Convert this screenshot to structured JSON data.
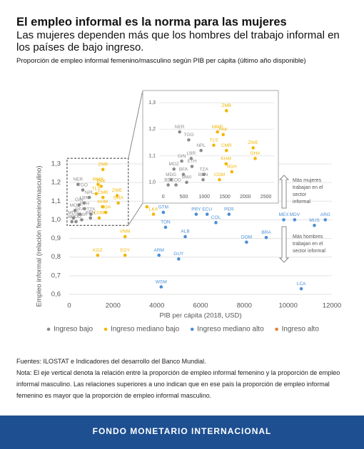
{
  "chart_data": {
    "type": "scatter",
    "title": "El empleo informal es la norma para las mujeres",
    "subtitle": "Las mujeres dependen más que los hombres del trabajo informal en los países de bajo ingreso.",
    "description": "Proporción de empleo informal femenino/masculino según PIB per cápita (último año disponible)",
    "xlabel": "PIB per cápita (2018, USD)",
    "ylabel": "Empleo informal (relación femenino/masculino)",
    "xlim": [
      0,
      12000
    ],
    "xticks": [
      0,
      2000,
      4000,
      6000,
      8000,
      10000,
      12000
    ],
    "ylim": [
      0.6,
      1.3
    ],
    "yticks": [
      {
        "value": 0.6,
        "label": "0,6"
      },
      {
        "value": 0.7,
        "label": "0,7"
      },
      {
        "value": 0.8,
        "label": "0,8"
      },
      {
        "value": 0.9,
        "label": "0,9"
      },
      {
        "value": 1.0,
        "label": "1,0"
      },
      {
        "value": 1.1,
        "label": "1,1"
      },
      {
        "value": 1.2,
        "label": "1,2"
      },
      {
        "value": 1.3,
        "label": "1,3"
      }
    ],
    "grid": true,
    "series": [
      {
        "name": "Ingreso bajo",
        "color": "#8c8c8c",
        "labels": [
          "NER",
          "TGO",
          "NPL",
          "LBR",
          "GIN",
          "ETH",
          "MOZ",
          "BFA",
          "TZA",
          "BEN",
          "MDG",
          "BDI",
          "COD",
          "MWI"
        ],
        "x": [
          400,
          620,
          920,
          680,
          450,
          700,
          260,
          490,
          990,
          970,
          190,
          120,
          310,
          570
        ],
        "y": [
          1.19,
          1.16,
          1.12,
          1.09,
          1.08,
          1.06,
          1.05,
          1.03,
          1.03,
          1.01,
          1.01,
          0.99,
          0.99,
          1.0
        ]
      },
      {
        "name": "Ingreso mediano bajo",
        "color": "#f2b705",
        "labels": [
          "ZMB",
          "MMR",
          "PAK",
          "TLS",
          "ZWE",
          "GHA",
          "CMR",
          "KHM",
          "NGA",
          "COM",
          "KGZ",
          "EGY",
          "VNM",
          "BOL",
          "LKA"
        ],
        "x": [
          1540,
          1320,
          1460,
          1230,
          2190,
          2240,
          1540,
          1530,
          1670,
          1370,
          1300,
          2550,
          2550,
          3550,
          3850
        ],
        "y": [
          1.27,
          1.19,
          1.18,
          1.14,
          1.13,
          1.09,
          1.12,
          1.07,
          1.04,
          1.01,
          0.81,
          0.81,
          0.91,
          1.07,
          1.03
        ]
      },
      {
        "name": "Ingreso mediano alto",
        "color": "#4a8fd6",
        "labels": [
          "ARG",
          "MDV",
          "MEX",
          "MUS",
          "BRA",
          "DOM",
          "LCA",
          "PRY",
          "ECU",
          "PER",
          "COL",
          "GTM",
          "TON",
          "ALB",
          "ARM",
          "GUY",
          "WSM"
        ],
        "x": [
          11700,
          10300,
          9800,
          11200,
          9000,
          8100,
          10600,
          5800,
          6300,
          7300,
          6700,
          4300,
          4400,
          5300,
          4100,
          5000,
          4200
        ],
        "y": [
          1.0,
          1.0,
          1.0,
          0.97,
          0.905,
          0.88,
          0.63,
          1.03,
          1.03,
          1.03,
          0.985,
          1.04,
          0.96,
          0.91,
          0.81,
          0.79,
          0.64
        ]
      },
      {
        "name": "Ingreso alto",
        "color": "#ed7d31",
        "labels": [],
        "x": [],
        "y": []
      }
    ],
    "inset": {
      "xlim": [
        -100,
        2700
      ],
      "xticks": [
        0,
        500,
        1000,
        1500,
        2000,
        2500
      ],
      "ylim": [
        0.97,
        1.33
      ],
      "yticks": [
        {
          "value": 1.0,
          "label": "1,0"
        },
        {
          "value": 1.1,
          "label": "1,1"
        },
        {
          "value": 1.2,
          "label": "1,2"
        },
        {
          "value": 1.3,
          "label": "1,3"
        }
      ]
    },
    "annotation_up": [
      "Más mujeres",
      "trabajan en el",
      "sector",
      "informal"
    ],
    "annotation_down": [
      "Más hombres",
      "trabajan en el",
      "sector informal"
    ]
  },
  "sources": "Fuentes: ILOSTAT e Indicadores del desarrollo del Banco Mundial.",
  "note": "Nota: El eje vertical denota la relación entre la proporción de empleo informal femenino y la proporción de empleo informal masculino. Las relaciones superiores a uno indican que en ese país la proporción de empleo informal femenino es mayor que la proporción de empleo informal masculino.",
  "banner": "FONDO MONETARIO INTERNACIONAL"
}
